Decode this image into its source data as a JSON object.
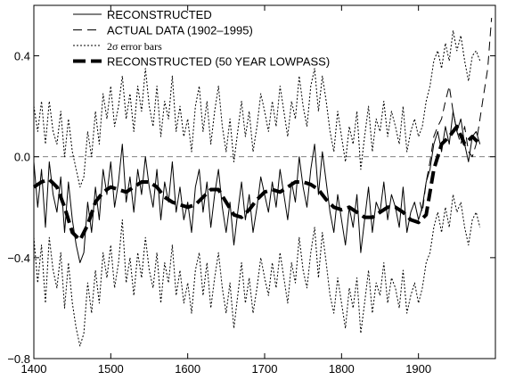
{
  "chart_data": {
    "type": "line",
    "title": "",
    "xlabel": "",
    "ylabel": "",
    "xlim": [
      1400,
      2000
    ],
    "ylim": [
      -0.8,
      0.6
    ],
    "x_ticks": [
      1400,
      1500,
      1600,
      1700,
      1800,
      1900
    ],
    "x_tick_labels": [
      "1400",
      "1500",
      "1600",
      "1700",
      "1800",
      "1900"
    ],
    "y_ticks": [
      -0.8,
      -0.4,
      0.0,
      0.4
    ],
    "y_tick_labels": [
      "−0.8",
      "−0.4",
      "0.0",
      "0.4"
    ],
    "grid": false,
    "reference_line": {
      "y": 0.0,
      "style": "dashed"
    },
    "legend_position": "top-left",
    "legend": [
      {
        "label": "RECONSTRUCTED",
        "style": "solid-thin"
      },
      {
        "label": "ACTUAL DATA (1902–1995)",
        "style": "long-dash"
      },
      {
        "label": "2σ error bars",
        "style": "dotted"
      },
      {
        "label": "RECONSTRUCTED (50 YEAR LOWPASS)",
        "style": "thick-dash"
      }
    ],
    "series": [
      {
        "label_ref": 0,
        "x": [
          1400,
          1405,
          1410,
          1415,
          1420,
          1425,
          1430,
          1435,
          1440,
          1445,
          1450,
          1455,
          1460,
          1465,
          1470,
          1475,
          1480,
          1485,
          1490,
          1495,
          1500,
          1505,
          1510,
          1515,
          1520,
          1525,
          1530,
          1535,
          1540,
          1545,
          1550,
          1555,
          1560,
          1565,
          1570,
          1575,
          1580,
          1585,
          1590,
          1595,
          1600,
          1605,
          1610,
          1615,
          1620,
          1625,
          1630,
          1635,
          1640,
          1645,
          1650,
          1655,
          1660,
          1665,
          1670,
          1675,
          1680,
          1685,
          1690,
          1695,
          1700,
          1705,
          1710,
          1715,
          1720,
          1725,
          1730,
          1735,
          1740,
          1745,
          1750,
          1755,
          1760,
          1765,
          1770,
          1775,
          1780,
          1785,
          1790,
          1795,
          1800,
          1805,
          1810,
          1815,
          1820,
          1825,
          1830,
          1835,
          1840,
          1845,
          1850,
          1855,
          1860,
          1865,
          1870,
          1875,
          1880,
          1885,
          1890,
          1895,
          1900,
          1905,
          1910,
          1915,
          1920,
          1925,
          1930,
          1935,
          1940,
          1945,
          1950,
          1955,
          1960,
          1965,
          1970,
          1975,
          1980
        ],
        "y": [
          -0.02,
          -0.2,
          -0.05,
          -0.28,
          -0.02,
          -0.15,
          -0.22,
          -0.08,
          -0.3,
          -0.1,
          -0.25,
          -0.35,
          -0.42,
          -0.38,
          -0.18,
          -0.3,
          -0.12,
          -0.25,
          -0.05,
          -0.15,
          -0.02,
          -0.2,
          -0.1,
          0.05,
          -0.18,
          -0.08,
          -0.22,
          -0.05,
          -0.15,
          0.0,
          -0.12,
          -0.2,
          -0.05,
          -0.25,
          -0.1,
          -0.18,
          -0.02,
          -0.22,
          -0.12,
          -0.25,
          -0.18,
          -0.3,
          -0.12,
          -0.05,
          -0.22,
          -0.1,
          -0.28,
          -0.15,
          -0.05,
          -0.2,
          -0.3,
          -0.18,
          -0.35,
          -0.22,
          -0.1,
          -0.25,
          -0.15,
          -0.3,
          -0.2,
          -0.08,
          -0.15,
          -0.22,
          -0.1,
          -0.2,
          -0.05,
          -0.15,
          -0.25,
          -0.1,
          -0.18,
          0.0,
          -0.12,
          -0.2,
          -0.05,
          0.05,
          -0.15,
          0.02,
          -0.1,
          -0.22,
          -0.3,
          -0.15,
          -0.25,
          -0.35,
          -0.2,
          -0.28,
          -0.15,
          -0.38,
          -0.25,
          -0.12,
          -0.3,
          -0.18,
          -0.22,
          -0.1,
          -0.25,
          -0.15,
          -0.2,
          -0.28,
          -0.12,
          -0.3,
          -0.22,
          -0.18,
          -0.25,
          -0.2,
          -0.1,
          -0.05,
          0.05,
          0.1,
          0.02,
          0.12,
          0.05,
          0.18,
          0.1,
          0.15,
          0.05,
          -0.02,
          0.08,
          0.1,
          0.05
        ]
      },
      {
        "label_ref": 1,
        "x": [
          1902,
          1905,
          1910,
          1915,
          1920,
          1925,
          1930,
          1935,
          1940,
          1945,
          1950,
          1955,
          1960,
          1965,
          1970,
          1975,
          1980,
          1985,
          1990,
          1995
        ],
        "y": [
          -0.18,
          -0.22,
          -0.1,
          -0.02,
          0.08,
          0.12,
          0.15,
          0.22,
          0.28,
          0.18,
          0.1,
          0.05,
          0.12,
          0.02,
          0.0,
          0.05,
          0.15,
          0.25,
          0.35,
          0.55
        ]
      },
      {
        "label_ref": 2,
        "name": "upper",
        "x": [
          1400,
          1405,
          1410,
          1415,
          1420,
          1425,
          1430,
          1435,
          1440,
          1445,
          1450,
          1455,
          1460,
          1465,
          1470,
          1475,
          1480,
          1485,
          1490,
          1495,
          1500,
          1505,
          1510,
          1515,
          1520,
          1525,
          1530,
          1535,
          1540,
          1545,
          1550,
          1555,
          1560,
          1565,
          1570,
          1575,
          1580,
          1585,
          1590,
          1595,
          1600,
          1605,
          1610,
          1615,
          1620,
          1625,
          1630,
          1635,
          1640,
          1645,
          1650,
          1655,
          1660,
          1665,
          1670,
          1675,
          1680,
          1685,
          1690,
          1695,
          1700,
          1705,
          1710,
          1715,
          1720,
          1725,
          1730,
          1735,
          1740,
          1745,
          1750,
          1755,
          1760,
          1765,
          1770,
          1775,
          1780,
          1785,
          1790,
          1795,
          1800,
          1805,
          1810,
          1815,
          1820,
          1825,
          1830,
          1835,
          1840,
          1845,
          1850,
          1855,
          1860,
          1865,
          1870,
          1875,
          1880,
          1885,
          1890,
          1895,
          1900,
          1905,
          1910,
          1915,
          1920,
          1925,
          1930,
          1935,
          1940,
          1945,
          1950,
          1955,
          1960,
          1965,
          1970,
          1975,
          1980
        ],
        "y": [
          0.2,
          0.1,
          0.22,
          0.05,
          0.22,
          0.1,
          0.05,
          0.18,
          0.0,
          0.15,
          0.02,
          -0.05,
          -0.12,
          -0.08,
          0.1,
          0.0,
          0.18,
          0.05,
          0.25,
          0.15,
          0.28,
          0.12,
          0.2,
          0.32,
          0.15,
          0.25,
          0.1,
          0.28,
          0.18,
          0.35,
          0.2,
          0.12,
          0.28,
          0.08,
          0.22,
          0.15,
          0.32,
          0.1,
          0.2,
          0.08,
          0.15,
          0.02,
          0.2,
          0.28,
          0.1,
          0.22,
          0.05,
          0.18,
          0.28,
          0.12,
          0.02,
          0.15,
          -0.02,
          0.1,
          0.22,
          0.08,
          0.18,
          0.02,
          0.12,
          0.25,
          0.18,
          0.1,
          0.22,
          0.12,
          0.28,
          0.18,
          0.08,
          0.22,
          0.15,
          0.32,
          0.2,
          0.12,
          0.28,
          0.35,
          0.18,
          0.32,
          0.22,
          0.1,
          0.02,
          0.18,
          0.08,
          -0.02,
          0.12,
          0.05,
          0.18,
          -0.05,
          0.08,
          0.2,
          0.02,
          0.15,
          0.1,
          0.22,
          0.08,
          0.18,
          0.12,
          0.05,
          0.2,
          0.02,
          0.1,
          0.15,
          0.08,
          0.12,
          0.22,
          0.28,
          0.38,
          0.42,
          0.35,
          0.45,
          0.38,
          0.5,
          0.42,
          0.48,
          0.38,
          0.3,
          0.4,
          0.42,
          0.38
        ]
      },
      {
        "label_ref": 2,
        "name": "lower",
        "x": [
          1400,
          1405,
          1410,
          1415,
          1420,
          1425,
          1430,
          1435,
          1440,
          1445,
          1450,
          1455,
          1460,
          1465,
          1470,
          1475,
          1480,
          1485,
          1490,
          1495,
          1500,
          1505,
          1510,
          1515,
          1520,
          1525,
          1530,
          1535,
          1540,
          1545,
          1550,
          1555,
          1560,
          1565,
          1570,
          1575,
          1580,
          1585,
          1590,
          1595,
          1600,
          1605,
          1610,
          1615,
          1620,
          1625,
          1630,
          1635,
          1640,
          1645,
          1650,
          1655,
          1660,
          1665,
          1670,
          1675,
          1680,
          1685,
          1690,
          1695,
          1700,
          1705,
          1710,
          1715,
          1720,
          1725,
          1730,
          1735,
          1740,
          1745,
          1750,
          1755,
          1760,
          1765,
          1770,
          1775,
          1780,
          1785,
          1790,
          1795,
          1800,
          1805,
          1810,
          1815,
          1820,
          1825,
          1830,
          1835,
          1840,
          1845,
          1850,
          1855,
          1860,
          1865,
          1870,
          1875,
          1880,
          1885,
          1890,
          1895,
          1900,
          1905,
          1910,
          1915,
          1920,
          1925,
          1930,
          1935,
          1940,
          1945,
          1950,
          1955,
          1960,
          1965,
          1970,
          1975,
          1980
        ],
        "y": [
          -0.32,
          -0.5,
          -0.35,
          -0.58,
          -0.32,
          -0.45,
          -0.52,
          -0.38,
          -0.6,
          -0.42,
          -0.58,
          -0.68,
          -0.75,
          -0.7,
          -0.5,
          -0.62,
          -0.45,
          -0.58,
          -0.38,
          -0.48,
          -0.35,
          -0.52,
          -0.42,
          -0.25,
          -0.5,
          -0.4,
          -0.55,
          -0.38,
          -0.48,
          -0.32,
          -0.45,
          -0.52,
          -0.38,
          -0.58,
          -0.42,
          -0.5,
          -0.35,
          -0.55,
          -0.45,
          -0.58,
          -0.5,
          -0.62,
          -0.45,
          -0.38,
          -0.55,
          -0.42,
          -0.6,
          -0.48,
          -0.38,
          -0.52,
          -0.62,
          -0.5,
          -0.68,
          -0.55,
          -0.42,
          -0.58,
          -0.48,
          -0.62,
          -0.52,
          -0.4,
          -0.48,
          -0.55,
          -0.42,
          -0.52,
          -0.38,
          -0.48,
          -0.58,
          -0.42,
          -0.5,
          -0.32,
          -0.45,
          -0.52,
          -0.38,
          -0.28,
          -0.48,
          -0.3,
          -0.42,
          -0.55,
          -0.62,
          -0.48,
          -0.58,
          -0.68,
          -0.52,
          -0.6,
          -0.48,
          -0.7,
          -0.58,
          -0.45,
          -0.62,
          -0.5,
          -0.55,
          -0.42,
          -0.58,
          -0.48,
          -0.52,
          -0.6,
          -0.45,
          -0.62,
          -0.55,
          -0.5,
          -0.58,
          -0.52,
          -0.42,
          -0.38,
          -0.28,
          -0.22,
          -0.3,
          -0.2,
          -0.28,
          -0.15,
          -0.22,
          -0.18,
          -0.28,
          -0.35,
          -0.25,
          -0.22,
          -0.28
        ]
      },
      {
        "label_ref": 3,
        "x": [
          1400,
          1410,
          1420,
          1430,
          1440,
          1450,
          1460,
          1470,
          1480,
          1490,
          1500,
          1510,
          1520,
          1530,
          1540,
          1550,
          1560,
          1570,
          1580,
          1590,
          1600,
          1610,
          1620,
          1630,
          1640,
          1650,
          1660,
          1670,
          1680,
          1690,
          1700,
          1710,
          1720,
          1730,
          1740,
          1750,
          1760,
          1770,
          1780,
          1790,
          1800,
          1810,
          1820,
          1830,
          1840,
          1850,
          1860,
          1870,
          1880,
          1890,
          1900,
          1910,
          1920,
          1930,
          1940,
          1950,
          1960,
          1970,
          1980
        ],
        "y": [
          -0.12,
          -0.1,
          -0.09,
          -0.12,
          -0.2,
          -0.3,
          -0.33,
          -0.27,
          -0.18,
          -0.14,
          -0.12,
          -0.13,
          -0.14,
          -0.12,
          -0.1,
          -0.1,
          -0.12,
          -0.16,
          -0.18,
          -0.19,
          -0.2,
          -0.19,
          -0.16,
          -0.13,
          -0.13,
          -0.18,
          -0.23,
          -0.24,
          -0.21,
          -0.17,
          -0.14,
          -0.13,
          -0.14,
          -0.12,
          -0.1,
          -0.1,
          -0.11,
          -0.13,
          -0.17,
          -0.2,
          -0.21,
          -0.2,
          -0.22,
          -0.24,
          -0.24,
          -0.22,
          -0.2,
          -0.2,
          -0.22,
          -0.25,
          -0.26,
          -0.23,
          -0.05,
          0.05,
          0.08,
          0.12,
          0.05,
          0.08,
          0.05
        ]
      }
    ]
  }
}
